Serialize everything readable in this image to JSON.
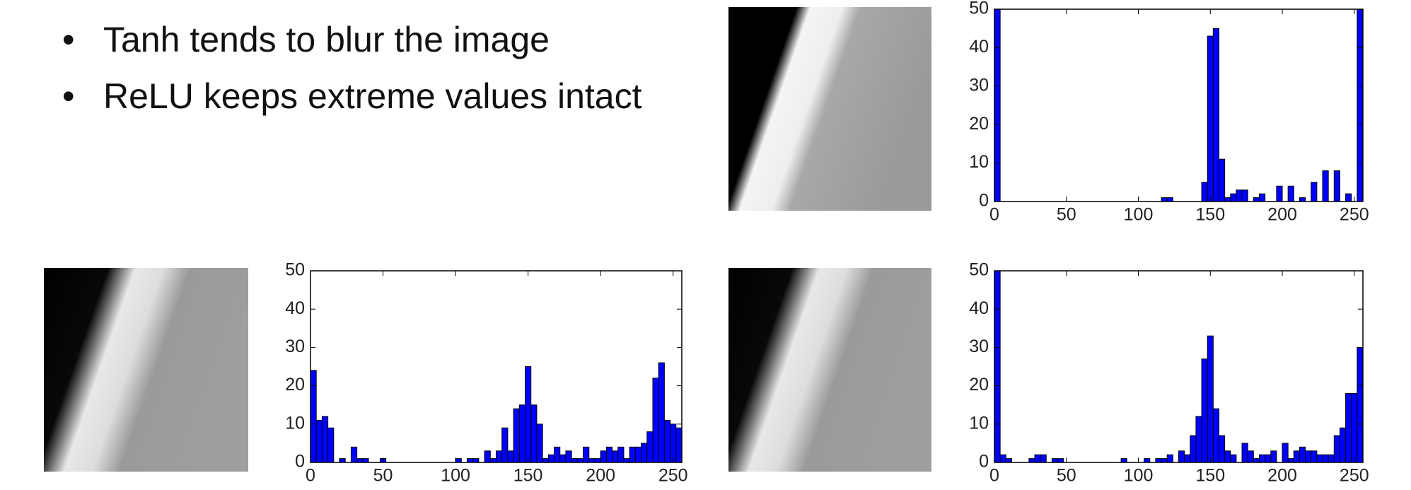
{
  "bullets": [
    "Tanh tends to blur the image",
    "ReLU keeps extreme values intact"
  ],
  "chart_data": [
    {
      "type": "histogram",
      "color": "#0000ff",
      "xlim": [
        0,
        256
      ],
      "ylim": [
        0,
        50
      ],
      "xticks": [
        0,
        50,
        100,
        150,
        200,
        250
      ],
      "yticks": [
        0,
        10,
        20,
        30,
        40,
        50
      ],
      "bins": [
        0,
        4,
        8,
        12,
        16,
        20,
        24,
        28,
        32,
        36,
        40,
        44,
        48,
        52,
        56,
        60,
        64,
        68,
        72,
        76,
        80,
        84,
        88,
        92,
        96,
        100,
        104,
        108,
        112,
        116,
        120,
        124,
        128,
        132,
        136,
        140,
        144,
        148,
        152,
        156,
        160,
        164,
        168,
        172,
        176,
        180,
        184,
        188,
        192,
        196,
        200,
        204,
        208,
        212,
        216,
        220,
        224,
        228,
        232,
        236,
        240,
        244,
        248,
        252,
        256
      ],
      "values": [
        50,
        0,
        0,
        0,
        0,
        0,
        0,
        0,
        0,
        0,
        0,
        0,
        0,
        0,
        0,
        0,
        0,
        0,
        0,
        0,
        0,
        0,
        0,
        0,
        0,
        0,
        0,
        0,
        0,
        1,
        1,
        0,
        0,
        0,
        0,
        0,
        5,
        43,
        45,
        11,
        1,
        2,
        3,
        3,
        0,
        1,
        2,
        0,
        0,
        4,
        0,
        4,
        0,
        1,
        0,
        5,
        0,
        8,
        0,
        8,
        0,
        2,
        0,
        50
      ]
    },
    {
      "type": "histogram",
      "color": "#0000ff",
      "xlim": [
        0,
        256
      ],
      "ylim": [
        0,
        50
      ],
      "xticks": [
        0,
        50,
        100,
        150,
        200,
        250
      ],
      "yticks": [
        0,
        10,
        20,
        30,
        40,
        50
      ],
      "bins": [
        0,
        4,
        8,
        12,
        16,
        20,
        24,
        28,
        32,
        36,
        40,
        44,
        48,
        52,
        56,
        60,
        64,
        68,
        72,
        76,
        80,
        84,
        88,
        92,
        96,
        100,
        104,
        108,
        112,
        116,
        120,
        124,
        128,
        132,
        136,
        140,
        144,
        148,
        152,
        156,
        160,
        164,
        168,
        172,
        176,
        180,
        184,
        188,
        192,
        196,
        200,
        204,
        208,
        212,
        216,
        220,
        224,
        228,
        232,
        236,
        240,
        244,
        248,
        252,
        256
      ],
      "values": [
        24,
        11,
        12,
        9,
        0,
        1,
        0,
        4,
        1,
        1,
        0,
        0,
        1,
        0,
        0,
        0,
        0,
        0,
        0,
        0,
        0,
        0,
        0,
        0,
        0,
        1,
        0,
        1,
        1,
        0,
        3,
        1,
        3,
        9,
        3,
        14,
        15,
        25,
        15,
        10,
        1,
        2,
        4,
        2,
        3,
        1,
        1,
        4,
        1,
        1,
        3,
        4,
        3,
        4,
        1,
        4,
        4,
        5,
        8,
        22,
        26,
        11,
        10,
        9
      ]
    },
    {
      "type": "histogram",
      "color": "#0000ff",
      "xlim": [
        0,
        256
      ],
      "ylim": [
        0,
        50
      ],
      "xticks": [
        0,
        50,
        100,
        150,
        200,
        250
      ],
      "yticks": [
        0,
        10,
        20,
        30,
        40,
        50
      ],
      "bins": [
        0,
        4,
        8,
        12,
        16,
        20,
        24,
        28,
        32,
        36,
        40,
        44,
        48,
        52,
        56,
        60,
        64,
        68,
        72,
        76,
        80,
        84,
        88,
        92,
        96,
        100,
        104,
        108,
        112,
        116,
        120,
        124,
        128,
        132,
        136,
        140,
        144,
        148,
        152,
        156,
        160,
        164,
        168,
        172,
        176,
        180,
        184,
        188,
        192,
        196,
        200,
        204,
        208,
        212,
        216,
        220,
        224,
        228,
        232,
        236,
        240,
        244,
        248,
        252,
        256
      ],
      "values": [
        50,
        2,
        1,
        0,
        0,
        0,
        1,
        2,
        2,
        0,
        1,
        1,
        0,
        0,
        0,
        0,
        0,
        0,
        0,
        0,
        0,
        0,
        1,
        0,
        0,
        0,
        1,
        0,
        1,
        1,
        2,
        0,
        3,
        2,
        7,
        12,
        27,
        33,
        14,
        7,
        3,
        2,
        0,
        5,
        3,
        1,
        2,
        2,
        3,
        0,
        5,
        1,
        3,
        4,
        3,
        3,
        2,
        2,
        2,
        7,
        9,
        18,
        18,
        30
      ]
    }
  ]
}
